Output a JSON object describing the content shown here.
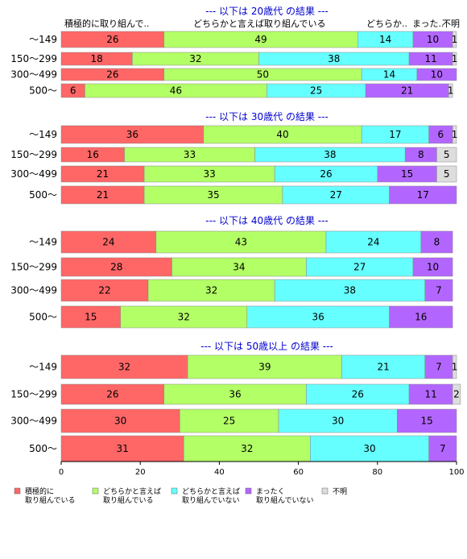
{
  "chart_data": {
    "type": "bar",
    "orientation": "horizontal",
    "stacked": true,
    "xlim": [
      0,
      100
    ],
    "x_ticks": [
      "0",
      "20",
      "40",
      "60",
      "80",
      "100"
    ],
    "column_headers": [
      "積極的に取り組んで..",
      "どちらかと言えば取り組んでいる",
      "どちらか..",
      "まった..",
      "不明"
    ],
    "legend_position": "bottom",
    "colors": [
      "#ff6666",
      "#b3ff66",
      "#66ffff",
      "#b366ff",
      "#dddddd"
    ],
    "series": [
      {
        "name": "積極的に\n取り組んでいる"
      },
      {
        "name": "どちらかと言えば\n取り組んでいる"
      },
      {
        "name": "どちらかと言えば\n取り組んでいない"
      },
      {
        "name": "まったく\n取り組んでいない"
      },
      {
        "name": "不明"
      }
    ],
    "groups": [
      {
        "title": "--- 以下は 20歳代 の結果 ---",
        "rows": [
          {
            "label": "〜149",
            "values": [
              26,
              49,
              14,
              10,
              1
            ]
          },
          {
            "label": "150〜299",
            "values": [
              18,
              32,
              38,
              11,
              1
            ]
          },
          {
            "label": "300〜499",
            "values": [
              26,
              50,
              14,
              10,
              0
            ]
          },
          {
            "label": "500〜",
            "values": [
              6,
              46,
              25,
              21,
              1
            ]
          }
        ]
      },
      {
        "title": "--- 以下は 30歳代 の結果 ---",
        "rows": [
          {
            "label": "〜149",
            "values": [
              36,
              40,
              17,
              6,
              1
            ]
          },
          {
            "label": "150〜299",
            "values": [
              16,
              33,
              38,
              8,
              5
            ]
          },
          {
            "label": "300〜499",
            "values": [
              21,
              33,
              26,
              15,
              5
            ]
          },
          {
            "label": "500〜",
            "values": [
              21,
              35,
              27,
              17,
              0
            ]
          }
        ]
      },
      {
        "title": "--- 以下は 40歳代 の結果 ---",
        "rows": [
          {
            "label": "〜149",
            "values": [
              24,
              43,
              24,
              8,
              0
            ]
          },
          {
            "label": "150〜299",
            "values": [
              28,
              34,
              27,
              10,
              0
            ]
          },
          {
            "label": "300〜499",
            "values": [
              22,
              32,
              38,
              7,
              0
            ]
          },
          {
            "label": "500〜",
            "values": [
              15,
              32,
              36,
              16,
              0
            ]
          }
        ]
      },
      {
        "title": "--- 以下は 50歳以上 の結果 ---",
        "rows": [
          {
            "label": "〜149",
            "values": [
              32,
              39,
              21,
              7,
              1
            ]
          },
          {
            "label": "150〜299",
            "values": [
              26,
              36,
              26,
              11,
              2
            ]
          },
          {
            "label": "300〜499",
            "values": [
              30,
              25,
              30,
              15,
              0
            ]
          },
          {
            "label": "500〜",
            "values": [
              31,
              32,
              30,
              7,
              0
            ]
          }
        ]
      }
    ]
  }
}
